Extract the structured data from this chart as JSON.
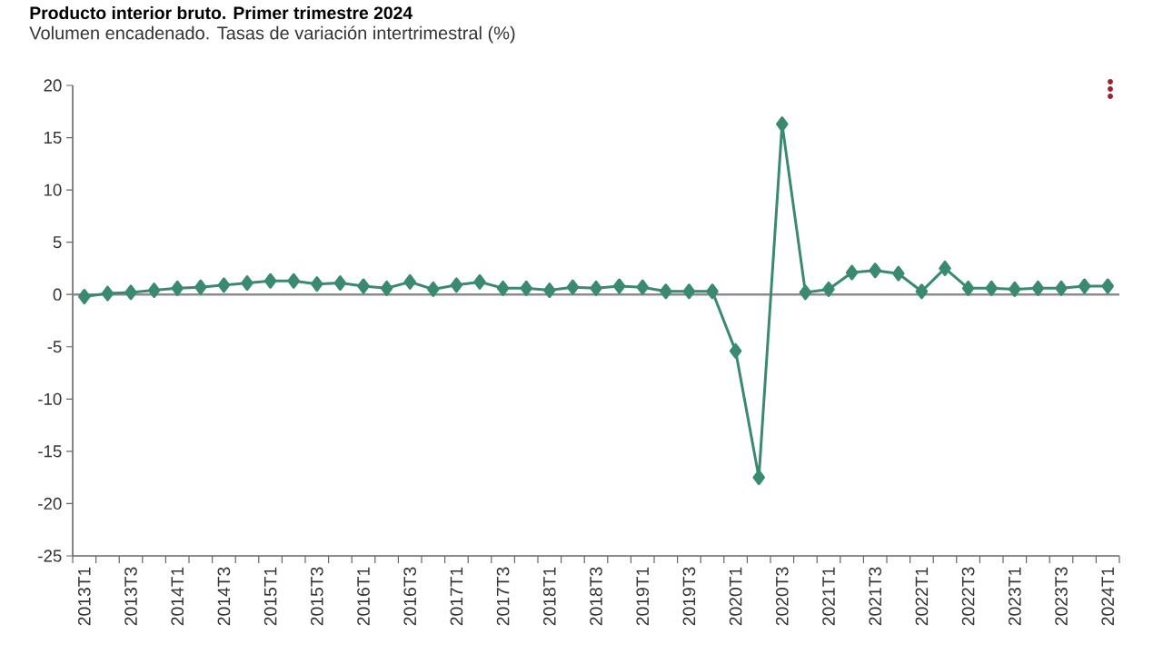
{
  "chart_data": {
    "type": "line",
    "title": "Producto interior bruto. Primer trimestre 2024",
    "subtitle": "Volumen encadenado. Tasas de variación intertrimestral (%)",
    "categories": [
      "2013T1",
      null,
      "2013T3",
      null,
      "2014T1",
      null,
      "2014T3",
      null,
      "2015T1",
      null,
      "2015T3",
      null,
      "2016T1",
      null,
      "2016T3",
      null,
      "2017T1",
      null,
      "2017T3",
      null,
      "2018T1",
      null,
      "2018T3",
      null,
      "2019T1",
      null,
      "2019T3",
      null,
      "2020T1",
      null,
      "2020T3",
      null,
      "2021T1",
      null,
      "2021T3",
      null,
      "2022T1",
      null,
      "2022T3",
      null,
      "2023T1",
      null,
      "2023T3",
      null,
      "2024T1"
    ],
    "series": [
      {
        "color": "#3a8a70",
        "values": [
          -0.2,
          0.1,
          0.2,
          0.4,
          0.6,
          0.7,
          0.9,
          1.1,
          1.3,
          1.3,
          1.0,
          1.1,
          0.8,
          0.6,
          1.2,
          0.5,
          0.9,
          1.2,
          0.6,
          0.6,
          0.4,
          0.7,
          0.6,
          0.8,
          0.7,
          0.3,
          0.3,
          0.3,
          -5.4,
          -17.5,
          16.3,
          0.2,
          0.5,
          2.1,
          2.3,
          2.0,
          0.3,
          2.5,
          0.6,
          0.6,
          0.5,
          0.6,
          0.6,
          0.8,
          0.8
        ]
      }
    ],
    "ylim": [
      -25,
      20
    ],
    "yticks": [
      -25,
      -20,
      -15,
      -10,
      -5,
      0,
      5,
      10,
      15,
      20
    ],
    "marker": "diamond",
    "line_style": "solid",
    "ref_lines": [
      {
        "axis": "y",
        "value": 0,
        "color": "#8c8c8c"
      }
    ]
  }
}
